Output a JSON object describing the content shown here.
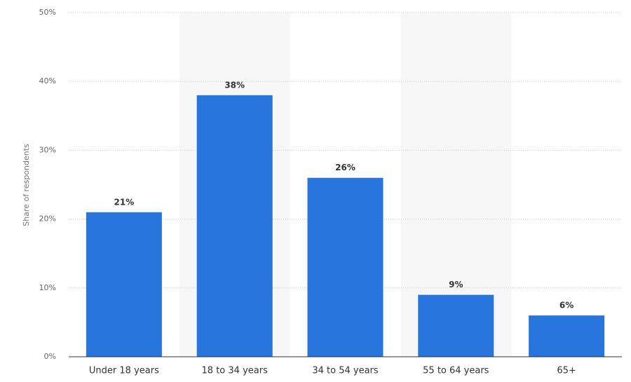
{
  "chart_data": {
    "type": "bar",
    "y_label": "Share of respondents",
    "categories": [
      "Under 18 years",
      "18 to 34 years",
      "34 to 54 years",
      "55 to 64 years",
      "65+"
    ],
    "values": [
      21,
      38,
      26,
      9,
      6
    ],
    "value_labels": [
      "21%",
      "38%",
      "26%",
      "9%",
      "6%"
    ],
    "color": "#2876dd",
    "ylim": [
      0,
      50
    ],
    "yticks": [
      {
        "value": 0,
        "label": "0%"
      },
      {
        "value": 10,
        "label": "10%"
      },
      {
        "value": 20,
        "label": "20%"
      },
      {
        "value": 30,
        "label": "30%"
      },
      {
        "value": 40,
        "label": "40%"
      },
      {
        "value": 50,
        "label": "50%"
      }
    ],
    "grid": true
  }
}
